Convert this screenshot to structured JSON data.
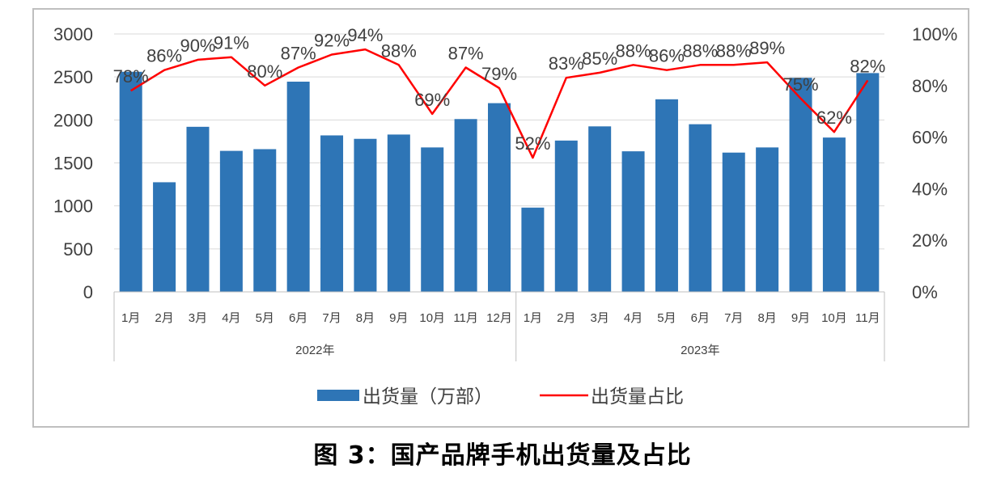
{
  "caption": "图 3：国产品牌手机出货量及占比",
  "chart_data": {
    "type": "bar+line",
    "categories": [
      "1月",
      "2月",
      "3月",
      "4月",
      "5月",
      "6月",
      "7月",
      "8月",
      "9月",
      "10月",
      "11月",
      "12月",
      "1月",
      "2月",
      "3月",
      "4月",
      "5月",
      "6月",
      "7月",
      "8月",
      "9月",
      "10月",
      "11月"
    ],
    "groups": [
      {
        "label": "2022年",
        "count": 12
      },
      {
        "label": "2023年",
        "count": 11
      }
    ],
    "series": [
      {
        "name": "出货量（万部）",
        "type": "bar",
        "axis": "left",
        "color": "#2E75B6",
        "values": [
          2560,
          1275,
          1920,
          1640,
          1660,
          2445,
          1820,
          1780,
          1830,
          1680,
          2010,
          2195,
          980,
          1760,
          1925,
          1635,
          2240,
          1950,
          1620,
          1680,
          2490,
          1795,
          2545
        ]
      },
      {
        "name": "出货量占比",
        "type": "line",
        "axis": "right",
        "color": "#FF0000",
        "values": [
          78,
          86,
          90,
          91,
          80,
          87,
          92,
          94,
          88,
          69,
          87,
          79,
          52,
          83,
          85,
          88,
          86,
          88,
          88,
          89,
          75,
          62,
          82
        ],
        "labels": [
          "78%",
          "86%",
          "90%",
          "91%",
          "80%",
          "87%",
          "92%",
          "94%",
          "88%",
          "69%",
          "87%",
          "79%",
          "52%",
          "83%",
          "85%",
          "88%",
          "86%",
          "88%",
          "88%",
          "89%",
          "75%",
          "62%",
          "82%"
        ]
      }
    ],
    "yleft": {
      "min": 0,
      "max": 3000,
      "ticks": [
        "0",
        "500",
        "1000",
        "1500",
        "2000",
        "2500",
        "3000"
      ]
    },
    "yright": {
      "min": 0,
      "max": 100,
      "ticks": [
        "0%",
        "20%",
        "40%",
        "60%",
        "80%",
        "100%"
      ]
    },
    "legend": {
      "position": "bottom"
    }
  }
}
